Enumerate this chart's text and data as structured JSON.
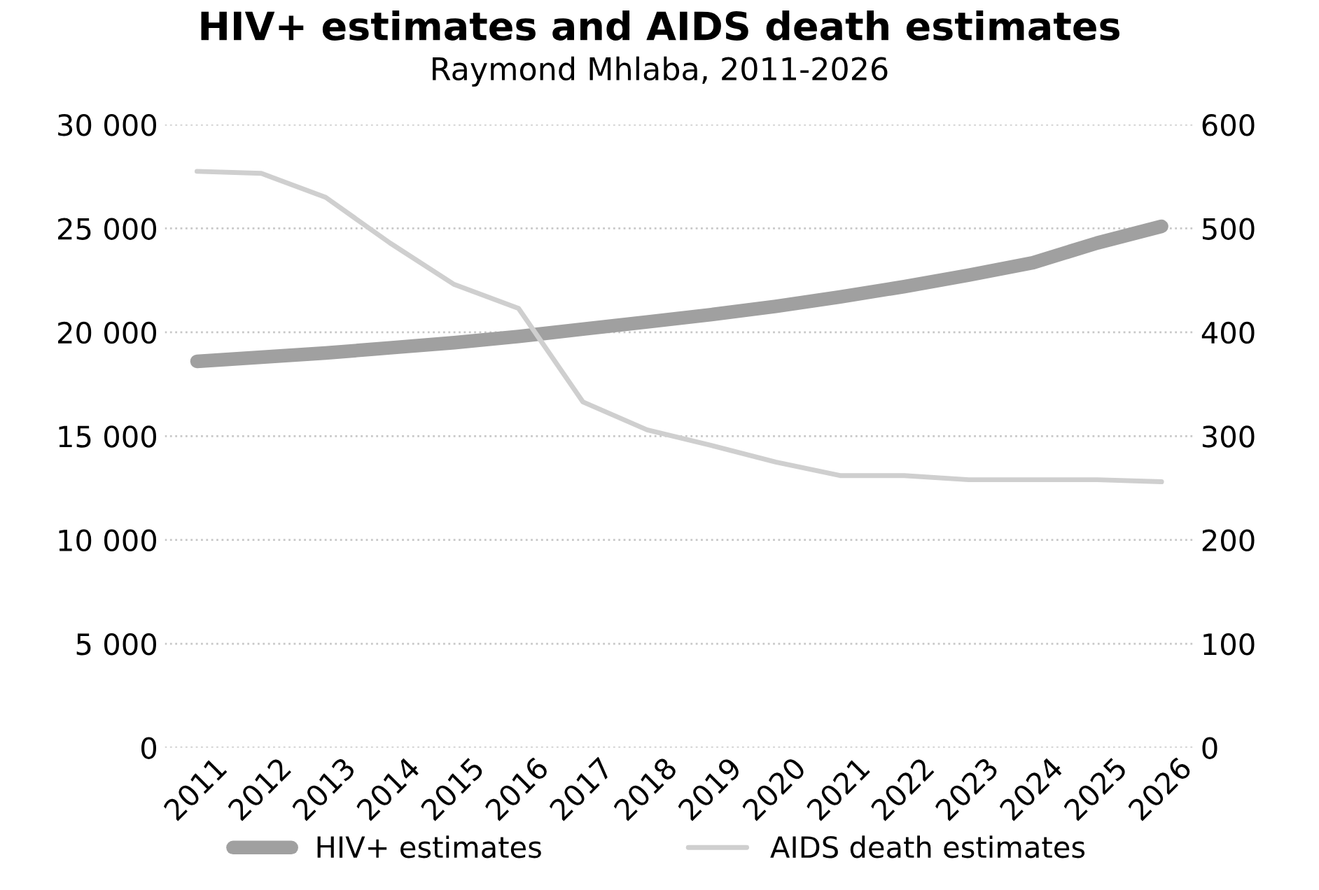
{
  "chart_data": {
    "type": "line",
    "title": "HIV+ estimates and AIDS death estimates",
    "subtitle": "Raymond Mhlaba, 2011-2026",
    "categories": [
      "2011",
      "2012",
      "2013",
      "2014",
      "2015",
      "2016",
      "2017",
      "2018",
      "2019",
      "2020",
      "2021",
      "2022",
      "2023",
      "2024",
      "2025",
      "2026"
    ],
    "series": [
      {
        "name": "HIV+ estimates",
        "color": "#a0a0a0",
        "values": [
          18600,
          18800,
          19000,
          19250,
          19500,
          19800,
          20150,
          20500,
          20850,
          21250,
          21700,
          22200,
          22750,
          23350,
          24300,
          25100
        ]
      },
      {
        "name": "AIDS death estimates",
        "color": "#cfcfcf",
        "axis": "y2",
        "values": [
          555,
          553,
          530,
          486,
          446,
          423,
          333,
          306,
          291,
          275,
          262,
          262,
          258,
          258,
          258,
          256
        ]
      }
    ],
    "ylim": [
      0,
      30000
    ],
    "yticks": [
      {
        "value": 0,
        "label": "0"
      },
      {
        "value": 5000,
        "label": "5 000"
      },
      {
        "value": 10000,
        "label": "10 000"
      },
      {
        "value": 15000,
        "label": "15 000"
      },
      {
        "value": 20000,
        "label": "20 000"
      },
      {
        "value": 25000,
        "label": "25 000"
      },
      {
        "value": 30000,
        "label": "30 000"
      }
    ],
    "y2lim": [
      0,
      600
    ],
    "y2ticks": [
      0,
      100,
      200,
      300,
      400,
      500,
      600
    ],
    "grid": "y",
    "legend": "bottom",
    "line_style": "solid",
    "marker": "none"
  }
}
